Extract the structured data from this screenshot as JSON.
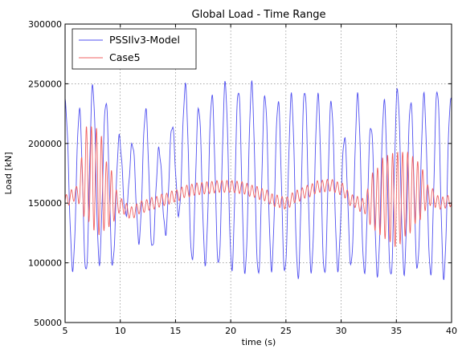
{
  "chart_data": {
    "type": "line",
    "title": "Global Load - Time Range",
    "xlabel": "time (s)",
    "ylabel": "Load [kN]",
    "xlim": [
      5,
      40
    ],
    "ylim": [
      50000,
      300000
    ],
    "x_ticks": [
      5,
      10,
      15,
      20,
      25,
      30,
      35,
      40
    ],
    "y_ticks": [
      50000,
      100000,
      150000,
      200000,
      250000,
      300000
    ],
    "grid": true,
    "legend_position": "top-left",
    "series": [
      {
        "name": "PSSIlv3-Model",
        "color": "#5050f0",
        "x": [
          5.0,
          5.7,
          6.3,
          6.9,
          7.5,
          8.1,
          8.7,
          9.3,
          9.9,
          10.5,
          11.1,
          11.7,
          12.3,
          12.9,
          13.5,
          14.1,
          14.7,
          15.3,
          15.9,
          16.5,
          17.1,
          17.7,
          18.3,
          18.9,
          19.5,
          20.1,
          20.7,
          21.3,
          21.9,
          22.5,
          23.1,
          23.7,
          24.3,
          24.9,
          25.5,
          26.1,
          26.7,
          27.3,
          27.9,
          28.5,
          29.1,
          29.7,
          30.3,
          30.9,
          31.5,
          32.1,
          32.7,
          33.3,
          33.9,
          34.5,
          35.1,
          35.7,
          36.3,
          36.9,
          37.5,
          38.1,
          38.7,
          39.3,
          39.9
        ],
        "y": [
          235000,
          95000,
          228000,
          92000,
          248000,
          100000,
          235000,
          98000,
          205000,
          140000,
          200000,
          118000,
          228000,
          112000,
          195000,
          125000,
          215000,
          140000,
          248000,
          102000,
          230000,
          100000,
          240000,
          98000,
          250000,
          95000,
          245000,
          92000,
          250000,
          90000,
          240000,
          95000,
          235000,
          92000,
          240000,
          88000,
          245000,
          93000,
          240000,
          90000,
          235000,
          95000,
          205000,
          98000,
          240000,
          92000,
          215000,
          90000,
          235000,
          88000,
          245000,
          92000,
          235000,
          95000,
          240000,
          90000,
          245000,
          88000,
          235000
        ]
      },
      {
        "name": "Case5",
        "color": "#f06060",
        "x": [
          5.0,
          6.0,
          7.0,
          8.0,
          9.0,
          10.0,
          11.0,
          12.0,
          13.0,
          14.0,
          15.0,
          16.0,
          17.0,
          18.0,
          19.0,
          20.0,
          21.0,
          22.0,
          23.0,
          24.0,
          25.0,
          26.0,
          27.0,
          28.0,
          29.0,
          30.0,
          31.0,
          32.0,
          33.0,
          34.0,
          35.0,
          36.0,
          37.0,
          38.0,
          39.0,
          40.0
        ],
        "y": [
          152000,
          158000,
          175000,
          168000,
          155000,
          148000,
          142000,
          147000,
          150000,
          153000,
          156000,
          160000,
          162000,
          163000,
          164000,
          164000,
          163000,
          160000,
          157000,
          152000,
          150000,
          156000,
          160000,
          164000,
          165000,
          162000,
          152000,
          148000,
          152000,
          155000,
          153000,
          158000,
          160000,
          156000,
          150000,
          152000
        ],
        "oscillation_amplitude": [
          5000,
          6000,
          40000,
          45000,
          25000,
          6000,
          5000,
          5000,
          5000,
          5000,
          5000,
          5000,
          5000,
          5000,
          5000,
          5000,
          5000,
          5000,
          5000,
          5000,
          5000,
          5000,
          5000,
          5000,
          5000,
          5000,
          5000,
          6000,
          25000,
          35000,
          40000,
          35000,
          25000,
          8000,
          5000,
          5000
        ]
      }
    ]
  }
}
